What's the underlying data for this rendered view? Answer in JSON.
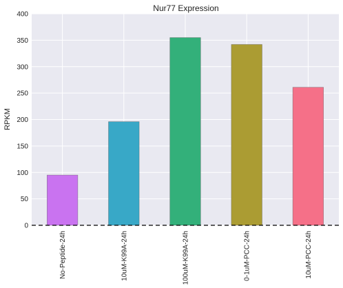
{
  "chart_data": {
    "type": "bar",
    "title": "Nur77 Expression",
    "xlabel": "",
    "ylabel": "RPKM",
    "categories": [
      "No-Peptide-24h",
      "10uM-K99A-24h",
      "100uM-K99A-24h",
      "0-1uM-PCC-24h",
      "10uM-PCC-24h"
    ],
    "values": [
      95,
      196,
      355,
      342,
      261
    ],
    "colors": [
      "#c973f0",
      "#38a8c7",
      "#33b07a",
      "#ab9c33",
      "#f57088"
    ],
    "ylim": [
      0,
      400
    ],
    "yticks": [
      0,
      50,
      100,
      150,
      200,
      250,
      300,
      350,
      400
    ],
    "grid": true,
    "background": "#e9e9f1",
    "baseline": {
      "value": 0,
      "style": "dashed",
      "color": "#000000"
    }
  }
}
